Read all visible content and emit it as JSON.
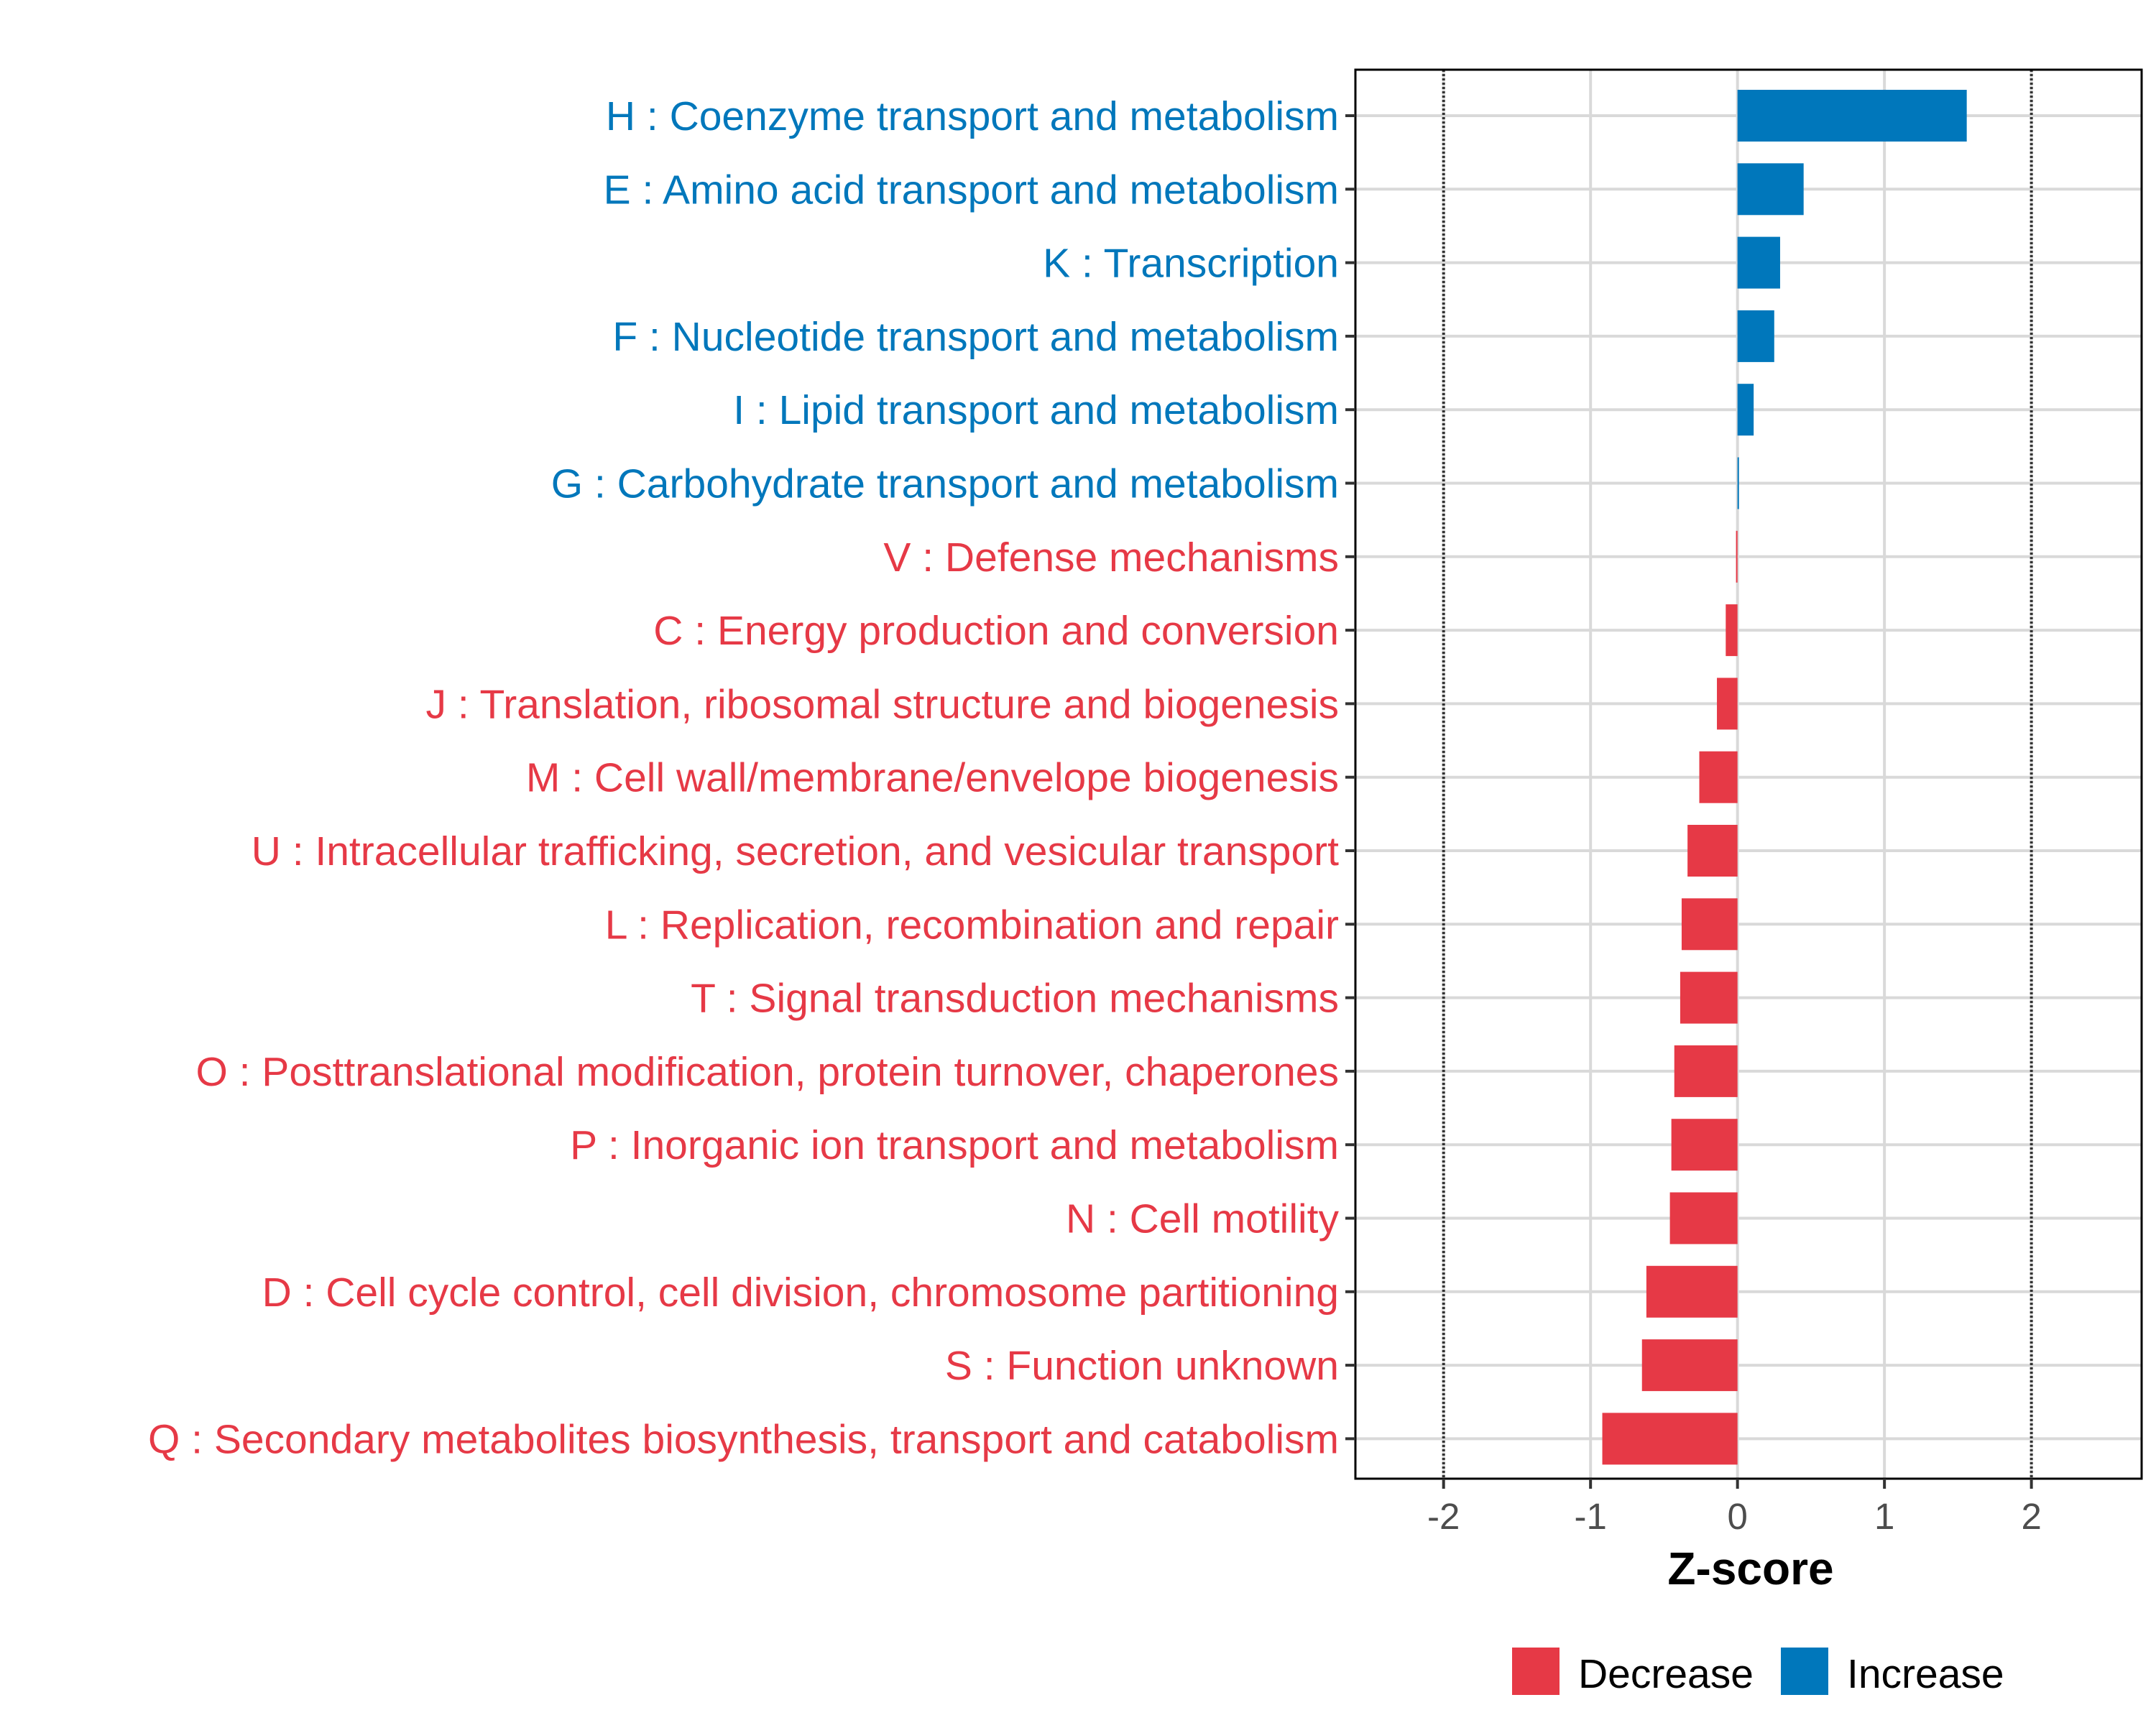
{
  "chart_data": {
    "type": "bar",
    "orientation": "horizontal",
    "xlabel": "Z-score",
    "ylabel": "",
    "xlim": [
      -2.6,
      2.75
    ],
    "xticks": [
      -2,
      -1,
      0,
      1,
      2
    ],
    "xtick_labels": [
      "-2",
      "-1",
      "0",
      "1",
      "2"
    ],
    "reference_lines": [
      -2,
      2
    ],
    "grid": true,
    "categories": [
      "H : Coenzyme transport and metabolism",
      "E : Amino acid transport and metabolism",
      "K : Transcription",
      "F : Nucleotide transport and metabolism",
      "I : Lipid transport and metabolism",
      "G : Carbohydrate transport and metabolism",
      "V : Defense mechanisms",
      "C : Energy production and conversion",
      "J : Translation, ribosomal structure and biogenesis",
      "M : Cell wall/membrane/envelope biogenesis",
      "U : Intracellular trafficking, secretion, and vesicular transport",
      "L : Replication, recombination and repair",
      "T : Signal transduction mechanisms",
      "O : Posttranslational modification, protein turnover, chaperones",
      "P : Inorganic ion transport and metabolism",
      "N : Cell motility",
      "D : Cell cycle control, cell division, chromosome partitioning",
      "S : Function unknown",
      "Q : Secondary metabolites biosynthesis, transport and catabolism"
    ],
    "values": [
      1.56,
      0.45,
      0.29,
      0.25,
      0.11,
      0.01,
      -0.01,
      -0.08,
      -0.14,
      -0.26,
      -0.34,
      -0.38,
      -0.39,
      -0.43,
      -0.45,
      -0.46,
      -0.62,
      -0.65,
      -0.92
    ],
    "legend": {
      "position": "bottom",
      "items": [
        {
          "label": "Decrease",
          "color": "#e63946"
        },
        {
          "label": "Increase",
          "color": "#0077bb"
        }
      ]
    },
    "colors": {
      "increase": "#0077bb",
      "decrease": "#e63946",
      "grid": "#d9d9d9",
      "border": "#000000"
    }
  }
}
